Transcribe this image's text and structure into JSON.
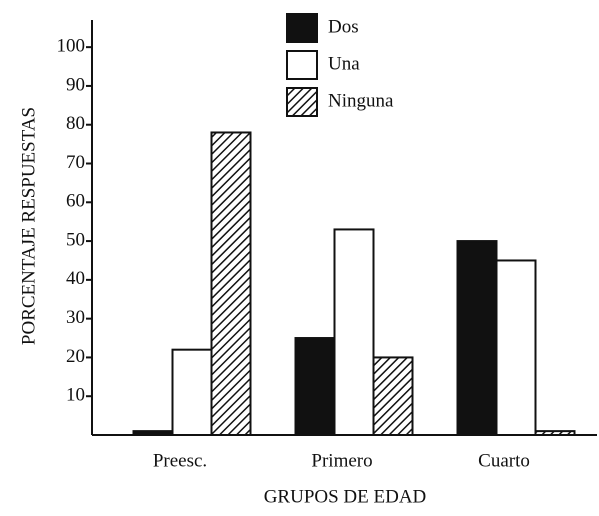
{
  "chart_data": {
    "type": "bar",
    "y_axis_label": "PORCENTAJE RESPUESTAS",
    "x_axis_label": "GRUPOS DE EDAD",
    "categories": [
      "Preesc.",
      "Primero",
      "Cuarto"
    ],
    "series": [
      {
        "name": "Dos",
        "color": "#111111",
        "values": [
          1,
          25,
          50
        ]
      },
      {
        "name": "Una",
        "color": "#ffffff",
        "values": [
          22,
          53,
          45
        ]
      },
      {
        "name": "Ninguna",
        "color": "#ffffff",
        "pattern": "hatch",
        "values": [
          78,
          20,
          1
        ]
      }
    ],
    "ylim": [
      0,
      107
    ],
    "yticks": [
      10,
      20,
      30,
      40,
      50,
      60,
      70,
      80,
      90,
      100
    ]
  }
}
